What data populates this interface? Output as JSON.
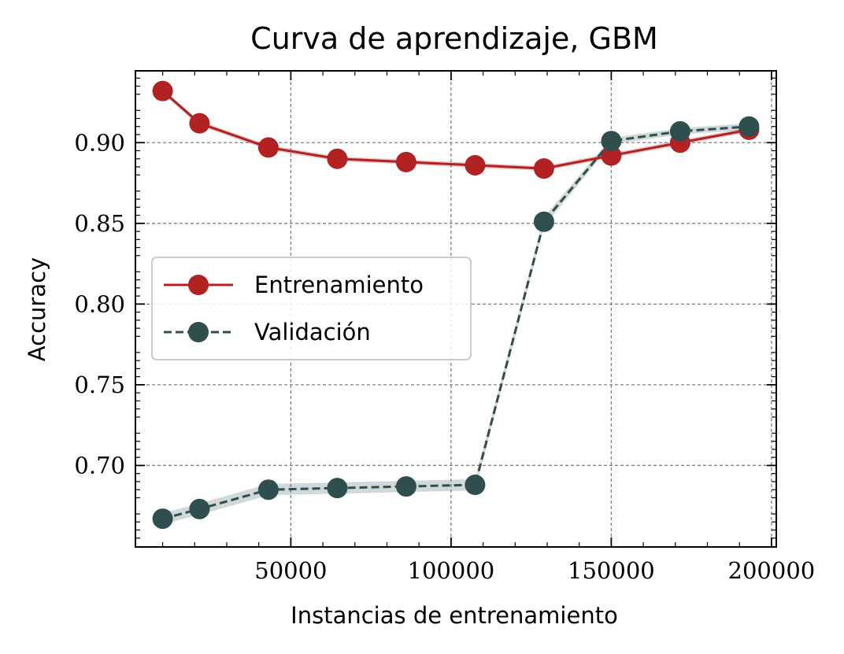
{
  "chart_data": {
    "type": "line",
    "title": "Curva de aprendizaje, GBM",
    "xlabel": "Instancias de entrenamiento",
    "ylabel": "Accuracy",
    "xlim": [
      1500,
      201500
    ],
    "ylim": [
      0.6495,
      0.9445
    ],
    "xticks": [
      50000,
      100000,
      150000,
      200000
    ],
    "yticks": [
      0.7,
      0.75,
      0.8,
      0.85,
      0.9
    ],
    "ytick_labels": [
      "0.70",
      "0.75",
      "0.80",
      "0.85",
      "0.90"
    ],
    "grid": true,
    "legend_position": "center-left",
    "x": [
      10000,
      21500,
      43000,
      64500,
      86000,
      107500,
      129000,
      150000,
      171500,
      193000
    ],
    "series": [
      {
        "name": "Entrenamiento",
        "color": "#b22222",
        "line_style": "solid",
        "values": [
          0.932,
          0.912,
          0.897,
          0.89,
          0.888,
          0.886,
          0.884,
          0.892,
          0.9,
          0.908
        ],
        "band": [
          0.0015,
          0.0015,
          0.0015,
          0.0015,
          0.0015,
          0.0015,
          0.0015,
          0.0015,
          0.0015,
          0.0015
        ]
      },
      {
        "name": "Validación",
        "color": "#2f4f4f",
        "line_style": "dashed",
        "values": [
          0.667,
          0.673,
          0.685,
          0.686,
          0.687,
          0.688,
          0.851,
          0.901,
          0.907,
          0.91
        ],
        "band": [
          0.0035,
          0.0035,
          0.0035,
          0.0035,
          0.0035,
          0.0035,
          0.003,
          0.002,
          0.002,
          0.002
        ]
      }
    ]
  }
}
